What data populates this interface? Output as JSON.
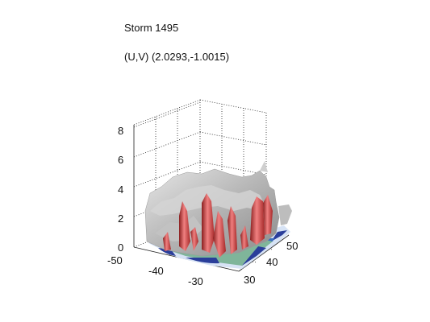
{
  "figure": {
    "title": "Storm 1495",
    "subtitle": "(U,V) (2.0293,-1.0015)"
  },
  "axes": {
    "z_ticks": [
      "0",
      "2",
      "4",
      "6",
      "8"
    ],
    "x_ticks": [
      "-50",
      "-40",
      "-30"
    ],
    "y_ticks": [
      "30",
      "40",
      "50"
    ],
    "grid": true
  },
  "colors": {
    "background": "#ffffff",
    "gray_surface": "#b8b8b8",
    "red_core": "#d84a4a",
    "blue_base": "#2a3e9a",
    "green_base": "#7fb59a"
  }
}
